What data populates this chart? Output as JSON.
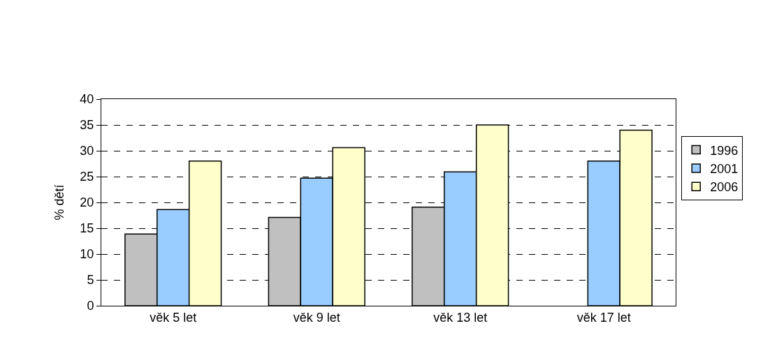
{
  "chart_data": {
    "type": "bar",
    "ylabel": "% dětí",
    "categories": [
      "věk 5 let",
      "věk 9 let",
      "věk 13 let",
      "věk 17 let"
    ],
    "series": [
      {
        "name": "1996",
        "color": "#c0c0c0",
        "values": [
          13.9,
          17.1,
          19.1,
          null
        ]
      },
      {
        "name": "2001",
        "color": "#99ccff",
        "values": [
          18.6,
          24.7,
          25.9,
          28
        ]
      },
      {
        "name": "2006",
        "color": "#ffffcc",
        "values": [
          28,
          30.6,
          35,
          34
        ]
      }
    ],
    "ylim": [
      0,
      40
    ],
    "yticks": [
      0,
      5,
      10,
      15,
      20,
      25,
      30,
      35,
      40
    ],
    "grid": "y",
    "legend": "right"
  }
}
